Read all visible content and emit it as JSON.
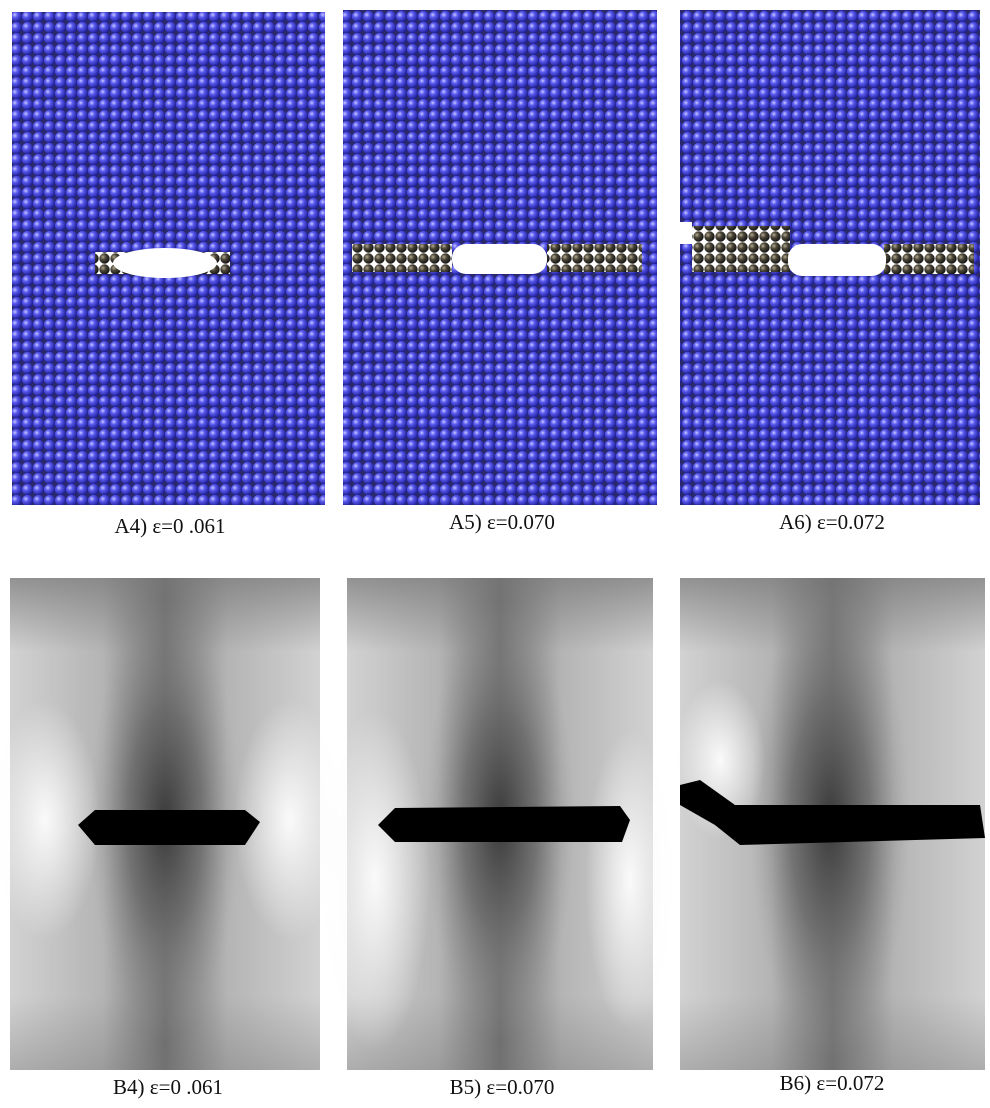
{
  "panels": [
    {
      "label": "A4) ε=0 .061"
    },
    {
      "label": "A5) ε=0.070"
    },
    {
      "label": "A6) ε=0.072"
    },
    {
      "label": "B4) ε=0 .061"
    },
    {
      "label": "B5) ε=0.070"
    },
    {
      "label": "B6) ε=0.072"
    }
  ]
}
